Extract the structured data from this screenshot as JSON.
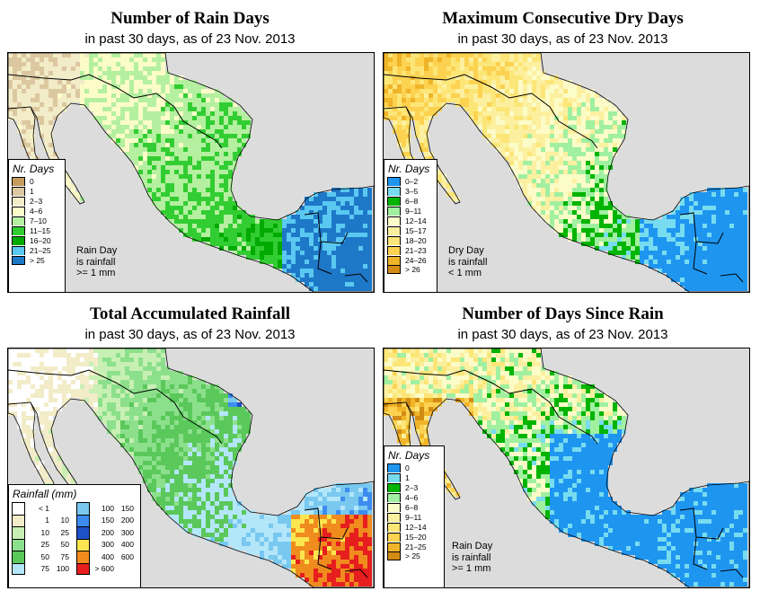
{
  "panels": [
    {
      "title": "Number of Rain Days",
      "subtitle": "in past 30 days, as of  23 Nov. 2013",
      "legend_title": "Nr. Days",
      "legend": [
        {
          "label": "0",
          "color": "#c69c5e"
        },
        {
          "label": "1",
          "color": "#dcc8a0"
        },
        {
          "label": "2–3",
          "color": "#f2ecc8"
        },
        {
          "label": "4–6",
          "color": "#fcfcc8"
        },
        {
          "label": "7–10",
          "color": "#b4f0a0"
        },
        {
          "label": "11–15",
          "color": "#32cd32"
        },
        {
          "label": "16–20",
          "color": "#00aa00"
        },
        {
          "label": "21–25",
          "color": "#5ac8f0"
        },
        {
          "label": "> 25",
          "color": "#1e78c8"
        }
      ],
      "note": [
        "Rain Day",
        "is rainfall",
        ">= 1 mm"
      ]
    },
    {
      "title": "Maximum Consecutive Dry Days",
      "subtitle": "in past 30 days, as of  23 Nov. 2013",
      "legend_title": "Nr. Days",
      "legend": [
        {
          "label": "0–2",
          "color": "#1e96f0"
        },
        {
          "label": "3–5",
          "color": "#78dcf0"
        },
        {
          "label": "6–8",
          "color": "#00b400"
        },
        {
          "label": "9–11",
          "color": "#a0f0a0"
        },
        {
          "label": "12–14",
          "color": "#fcfcc8"
        },
        {
          "label": "15–17",
          "color": "#fcf0a0"
        },
        {
          "label": "18–20",
          "color": "#fce678"
        },
        {
          "label": "21–23",
          "color": "#fcd250"
        },
        {
          "label": "24–26",
          "color": "#f0b428"
        },
        {
          "label": "> 26",
          "color": "#d28c14"
        }
      ],
      "note": [
        "Dry Day",
        "is rainfall",
        "< 1 mm"
      ]
    },
    {
      "title": "Total Accumulated Rainfall",
      "subtitle": "in past 30 days, as of  23 Nov. 2013",
      "legend_title": "Rainfall (mm)",
      "legend_left": [
        {
          "lo": "< 1",
          "hi": "",
          "color": "#ffffff"
        },
        {
          "lo": "1",
          "hi": "10",
          "color": "#f2ecc8"
        },
        {
          "lo": "10",
          "hi": "25",
          "color": "#c8f0b4"
        },
        {
          "lo": "25",
          "hi": "50",
          "color": "#8ce08c"
        },
        {
          "lo": "50",
          "hi": "75",
          "color": "#5ac85a"
        },
        {
          "lo": "75",
          "hi": "100",
          "color": "#b4e6fa"
        }
      ],
      "legend_right": [
        {
          "lo": "100",
          "hi": "150",
          "color": "#78c8f0"
        },
        {
          "lo": "150",
          "hi": "200",
          "color": "#3c8cf0"
        },
        {
          "lo": "200",
          "hi": "300",
          "color": "#1e50c8"
        },
        {
          "lo": "300",
          "hi": "400",
          "color": "#fce650"
        },
        {
          "lo": "400",
          "hi": "600",
          "color": "#f08c1e"
        },
        {
          "lo": "> 600",
          "hi": "",
          "color": "#e61e1e"
        }
      ]
    },
    {
      "title": "Number of Days Since Rain",
      "subtitle": "in past 30 days, as of  23 Nov. 2013",
      "legend_title": "Nr. Days",
      "legend": [
        {
          "label": "0",
          "color": "#1e96f0"
        },
        {
          "label": "1",
          "color": "#78dcf0"
        },
        {
          "label": "2–3",
          "color": "#00b400"
        },
        {
          "label": "4–6",
          "color": "#a0f0a0"
        },
        {
          "label": "6–8",
          "color": "#fcfcc8"
        },
        {
          "label": "9–11",
          "color": "#fcf0a0"
        },
        {
          "label": "12–14",
          "color": "#fce678"
        },
        {
          "label": "15–20",
          "color": "#fcd250"
        },
        {
          "label": "21–25",
          "color": "#f0b428"
        },
        {
          "label": "> 25",
          "color": "#d28c14"
        }
      ],
      "note": [
        "Rain Day",
        "is rainfall",
        ">= 1 mm"
      ]
    }
  ],
  "colors": {
    "ocean": "#dcdcdc",
    "border": "#000000"
  }
}
